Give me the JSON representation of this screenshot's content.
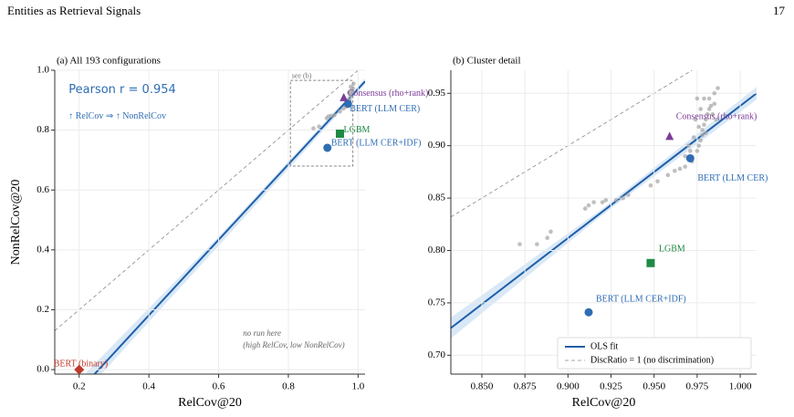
{
  "header": {
    "title": "Entities as Retrieval Signals",
    "page": "17"
  },
  "chart_data": [
    {
      "type": "scatter",
      "title": "(a) All 193 configurations",
      "x_label": "RelCov@20",
      "y_label": "NonRelCov@20",
      "xlim": [
        0.13,
        1.02
      ],
      "ylim": [
        -0.015,
        1.0
      ],
      "xticks": [
        {
          "value": 0.2,
          "label": "0.2"
        },
        {
          "value": 0.4,
          "label": "0.4"
        },
        {
          "value": 0.6,
          "label": "0.6"
        },
        {
          "value": 0.8,
          "label": "0.8"
        },
        {
          "value": 1.0,
          "label": "1.0"
        }
      ],
      "yticks": [
        {
          "value": 0.0,
          "label": "0.0"
        },
        {
          "value": 0.2,
          "label": "0.2"
        },
        {
          "value": 0.4,
          "label": "0.4"
        },
        {
          "value": 0.6,
          "label": "0.6"
        },
        {
          "value": 0.8,
          "label": "0.8"
        },
        {
          "value": 1.0,
          "label": "1.0"
        }
      ],
      "grid": true,
      "annotations": [
        {
          "text": "Pearson r = 0.954",
          "x": 0.17,
          "y": 0.935,
          "color": "#2f6db3",
          "size": 13
        },
        {
          "text": "↑ RelCov ⇒ ↑ NonRelCov",
          "x": 0.17,
          "y": 0.845,
          "color": "#2f6db3",
          "size": 10
        },
        {
          "text": "no run here",
          "x": 0.67,
          "y": 0.12,
          "color": "#666666",
          "size": 9
        },
        {
          "text": "(high RelCov, low NonRelCov)",
          "x": 0.67,
          "y": 0.08,
          "color": "#666666",
          "size": 9
        },
        {
          "text": "see (b)",
          "x": 0.81,
          "y": 0.98,
          "color": "#777777",
          "size": 8
        }
      ],
      "zoom_box": {
        "x": [
          0.806,
          0.985
        ],
        "y": [
          0.68,
          0.966
        ]
      },
      "band": {
        "color": "#cfe2f5",
        "x": [
          0.22,
          0.6,
          1.02
        ],
        "lower": [
          -0.07,
          0.414,
          0.953
        ],
        "upper": [
          -0.01,
          0.444,
          0.973
        ]
      },
      "lines": [
        {
          "color": "#1f5fa8",
          "dash": false,
          "x": [
            0.244,
            1.02
          ],
          "y": [
            -0.015,
            0.963
          ]
        },
        {
          "color": "#888888",
          "dash": true,
          "x": [
            0.13,
            1.0
          ],
          "y": [
            0.13,
            1.0
          ]
        }
      ],
      "series": [
        {
          "color": "#a9a9a9",
          "marker": "dot",
          "x": [
            0.872,
            0.888,
            0.91,
            0.915,
            0.922,
            0.932,
            0.948,
            0.958,
            0.965,
            0.972,
            0.976,
            0.978,
            0.98,
            0.982,
            0.985,
            0.984,
            0.979,
            0.987,
            0.97,
            0.974
          ],
          "y": [
            0.806,
            0.812,
            0.84,
            0.846,
            0.848,
            0.85,
            0.862,
            0.872,
            0.878,
            0.885,
            0.9,
            0.915,
            0.925,
            0.935,
            0.94,
            0.93,
            0.945,
            0.955,
            0.9,
            0.925
          ]
        },
        {
          "name": "BERT (binary)",
          "color": "#c0392b",
          "marker": "diamond",
          "x": [
            0.2
          ],
          "y": [
            0.0
          ]
        },
        {
          "name": "BERT (LLM CER+IDF)",
          "color": "#2f6db3",
          "marker": "circle",
          "x": [
            0.912
          ],
          "y": [
            0.741
          ]
        },
        {
          "name": "LGBM",
          "color": "#1e8a44",
          "marker": "square",
          "x": [
            0.948
          ],
          "y": [
            0.788
          ]
        },
        {
          "name": "BERT (LLM CER)",
          "color": "#2f6db3",
          "marker": "circle",
          "x": [
            0.971
          ],
          "y": [
            0.888
          ]
        },
        {
          "name": "Consensus (rho+rank)",
          "color": "#7d3c98",
          "marker": "triangle",
          "x": [
            0.959
          ],
          "y": [
            0.909
          ]
        }
      ]
    },
    {
      "type": "scatter",
      "title": "(b) Cluster detail",
      "x_label": "RelCov@20",
      "xlim": [
        0.832,
        1.0095
      ],
      "ylim": [
        0.682,
        0.972
      ],
      "xticks": [
        {
          "value": 0.85,
          "label": "0.850"
        },
        {
          "value": 0.875,
          "label": "0.875"
        },
        {
          "value": 0.9,
          "label": "0.900"
        },
        {
          "value": 0.925,
          "label": "0.925"
        },
        {
          "value": 0.95,
          "label": "0.950"
        },
        {
          "value": 0.975,
          "label": "0.975"
        },
        {
          "value": 1.0,
          "label": "1.000"
        }
      ],
      "yticks": [
        {
          "value": 0.7,
          "label": "0.70"
        },
        {
          "value": 0.75,
          "label": "0.75"
        },
        {
          "value": 0.8,
          "label": "0.80"
        },
        {
          "value": 0.85,
          "label": "0.85"
        },
        {
          "value": 0.9,
          "label": "0.90"
        },
        {
          "value": 0.95,
          "label": "0.95"
        }
      ],
      "grid": true,
      "legend": "lower right",
      "band": {
        "color": "#cfe2f5",
        "x": [
          0.832,
          0.92,
          1.0095
        ],
        "lower": [
          0.716,
          0.834,
          0.944
        ],
        "upper": [
          0.736,
          0.84,
          0.956
        ]
      },
      "lines": [
        {
          "name": "OLS fit",
          "color": "#1f5fa8",
          "dash": false,
          "x": [
            0.832,
            1.0095
          ],
          "y": [
            0.726,
            0.95
          ]
        },
        {
          "name": "DiscRatio = 1 (no discrimination)",
          "color": "#888888",
          "dash": true,
          "x": [
            0.832,
            0.972
          ],
          "y": [
            0.832,
            0.972
          ]
        }
      ],
      "series": [
        {
          "color": "#a9a9a9",
          "marker": "dot",
          "x": [
            0.872,
            0.882,
            0.888,
            0.89,
            0.91,
            0.912,
            0.915,
            0.92,
            0.922,
            0.928,
            0.932,
            0.935,
            0.948,
            0.952,
            0.958,
            0.962,
            0.965,
            0.968,
            0.972,
            0.975,
            0.976,
            0.977,
            0.978,
            0.978,
            0.979,
            0.98,
            0.981,
            0.982,
            0.983,
            0.985,
            0.984,
            0.986,
            0.979,
            0.975,
            0.987,
            0.985,
            0.97,
            0.973,
            0.968,
            0.974,
            0.977,
            0.982,
            0.98,
            0.976,
            0.971
          ],
          "y": [
            0.806,
            0.806,
            0.812,
            0.818,
            0.84,
            0.843,
            0.846,
            0.846,
            0.848,
            0.848,
            0.85,
            0.853,
            0.862,
            0.866,
            0.872,
            0.876,
            0.878,
            0.88,
            0.885,
            0.895,
            0.9,
            0.905,
            0.91,
            0.915,
            0.92,
            0.925,
            0.93,
            0.935,
            0.938,
            0.94,
            0.93,
            0.925,
            0.945,
            0.945,
            0.955,
            0.95,
            0.9,
            0.908,
            0.89,
            0.925,
            0.935,
            0.945,
            0.912,
            0.918,
            0.895
          ]
        },
        {
          "name": "BERT (LLM CER+IDF)",
          "color": "#2f6db3",
          "marker": "circle",
          "x": [
            0.912
          ],
          "y": [
            0.741
          ]
        },
        {
          "name": "LGBM",
          "color": "#1e8a44",
          "marker": "square",
          "x": [
            0.948
          ],
          "y": [
            0.788
          ]
        },
        {
          "name": "BERT (LLM CER)",
          "color": "#2f6db3",
          "marker": "circle",
          "x": [
            0.971
          ],
          "y": [
            0.888
          ]
        },
        {
          "name": "Consensus (rho+rank)",
          "color": "#7d3c98",
          "marker": "triangle",
          "x": [
            0.959
          ],
          "y": [
            0.909
          ]
        }
      ]
    }
  ]
}
